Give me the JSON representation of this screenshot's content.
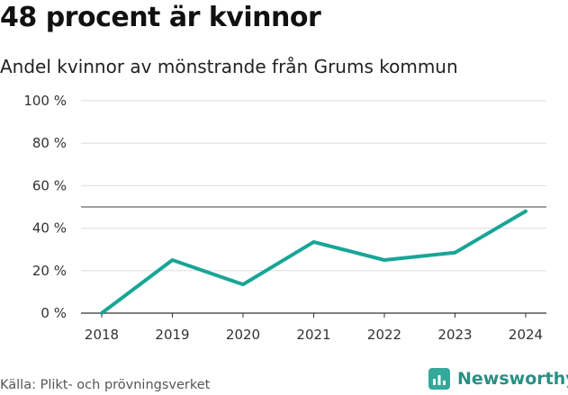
{
  "header": {
    "title": "48 procent är kvinnor",
    "subtitle": "Andel kvinnor av mönstrande från Grums kommun"
  },
  "footer": {
    "source": "Källa: Plikt- och prövningsverket",
    "brand": "Newsworthy"
  },
  "colors": {
    "line": "#18a596",
    "reference": "#666666",
    "grid": "#dddddd",
    "brand": "#2a8f84"
  },
  "chart_data": {
    "type": "line",
    "title": "48 procent är kvinnor",
    "subtitle": "Andel kvinnor av mönstrande från Grums kommun",
    "categories": [
      "2018",
      "2019",
      "2020",
      "2021",
      "2022",
      "2023",
      "2024"
    ],
    "series": [
      {
        "values": [
          0,
          25,
          13.5,
          33.5,
          25,
          28.5,
          48
        ]
      }
    ],
    "reference_line": 50,
    "ylim": [
      0,
      100
    ],
    "yticks": [
      0,
      20,
      40,
      60,
      80,
      100
    ],
    "ytick_labels": [
      "0 %",
      "20 %",
      "40 %",
      "60 %",
      "80 %",
      "100 %"
    ],
    "grid": true,
    "legend": "none"
  }
}
